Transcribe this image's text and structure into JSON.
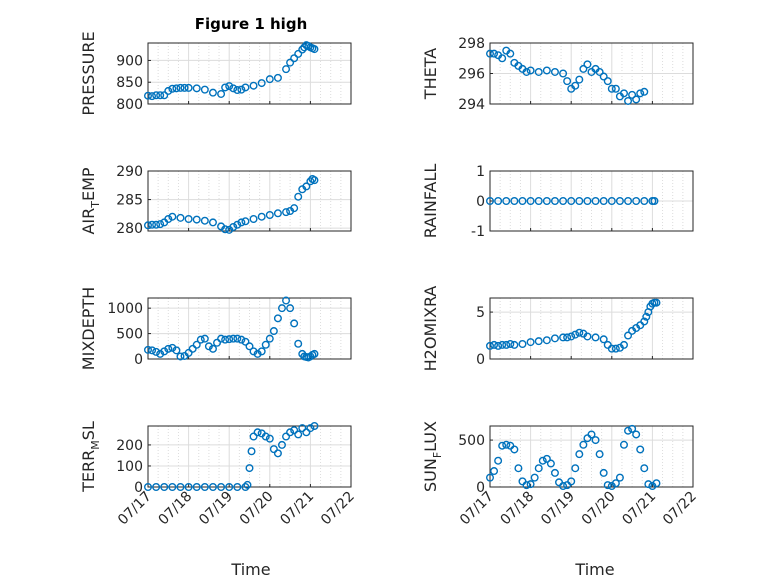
{
  "figure_title": "Figure 1 high",
  "colors": {
    "marker": "#0072BD",
    "axis": "#262626",
    "grid": "#dcdcdc"
  },
  "x_ticks": [
    "07/17",
    "07/18",
    "07/19",
    "07/20",
    "07/21",
    "07/22"
  ],
  "xlabel": "Time",
  "chart_data": [
    {
      "type": "scatter",
      "ylabel": "PRESSURE",
      "ylim": [
        800,
        940
      ],
      "yticks": [
        800,
        850,
        900
      ],
      "yticklabels": [
        "800",
        "850",
        "900"
      ],
      "grid": "major+minor",
      "x": [
        0,
        0.1,
        0.2,
        0.3,
        0.4,
        0.5,
        0.6,
        0.7,
        0.8,
        0.9,
        1,
        1.2,
        1.4,
        1.6,
        1.8,
        1.9,
        2,
        2.1,
        2.2,
        2.3,
        2.4,
        2.6,
        2.8,
        3,
        3.2,
        3.4,
        3.5,
        3.6,
        3.7,
        3.8,
        3.85,
        3.9,
        3.95,
        4,
        4.05,
        4.1
      ],
      "y": [
        819,
        818,
        820,
        820,
        820,
        830,
        835,
        836,
        837,
        837,
        837,
        836,
        833,
        826,
        823,
        838,
        841,
        836,
        832,
        833,
        838,
        842,
        848,
        857,
        860,
        880,
        895,
        905,
        915,
        925,
        930,
        935,
        933,
        930,
        928,
        926
      ]
    },
    {
      "type": "scatter",
      "ylabel": "THETA",
      "ylim": [
        294,
        298
      ],
      "yticks": [
        294,
        296,
        298
      ],
      "yticklabels": [
        "294",
        "296",
        "298"
      ],
      "grid": "major+minor",
      "x": [
        0,
        0.1,
        0.2,
        0.3,
        0.4,
        0.5,
        0.6,
        0.7,
        0.8,
        0.9,
        1,
        1.2,
        1.4,
        1.6,
        1.8,
        1.9,
        2,
        2.1,
        2.2,
        2.3,
        2.4,
        2.5,
        2.6,
        2.7,
        2.8,
        2.9,
        3,
        3.1,
        3.2,
        3.3,
        3.4,
        3.5,
        3.6,
        3.7,
        3.8
      ],
      "y": [
        297.3,
        297.3,
        297.2,
        297.0,
        297.5,
        297.3,
        296.7,
        296.5,
        296.3,
        296.1,
        296.2,
        296.1,
        296.2,
        296.1,
        296.0,
        295.5,
        295.0,
        295.2,
        295.6,
        296.3,
        296.6,
        296.1,
        296.3,
        296.1,
        295.8,
        295.5,
        295.0,
        295.0,
        294.5,
        294.7,
        294.2,
        294.6,
        294.3,
        294.7,
        294.8
      ]
    },
    {
      "type": "scatter",
      "ylabel": "AIR_TEMP",
      "ylim": [
        279.5,
        290
      ],
      "yticks": [
        280,
        285,
        290
      ],
      "yticklabels": [
        "280",
        "285",
        "290"
      ],
      "grid": "major+minor",
      "x": [
        0,
        0.1,
        0.2,
        0.3,
        0.4,
        0.5,
        0.6,
        0.8,
        1,
        1.2,
        1.4,
        1.6,
        1.8,
        1.9,
        2,
        2.1,
        2.2,
        2.3,
        2.4,
        2.6,
        2.8,
        3,
        3.2,
        3.4,
        3.5,
        3.6,
        3.7,
        3.8,
        3.9,
        4,
        4.05,
        4.1
      ],
      "y": [
        280.5,
        280.6,
        280.6,
        280.7,
        281.0,
        281.6,
        282.0,
        281.8,
        281.6,
        281.5,
        281.3,
        281.0,
        280.3,
        279.8,
        279.7,
        280.2,
        280.6,
        281.0,
        281.2,
        281.6,
        282.0,
        282.3,
        282.6,
        282.8,
        283.0,
        283.5,
        285.5,
        286.8,
        287.3,
        288.2,
        288.6,
        288.4
      ]
    },
    {
      "type": "scatter",
      "ylabel": "RAINFALL",
      "ylim": [
        -1,
        1
      ],
      "yticks": [
        -1,
        0,
        1
      ],
      "yticklabels": [
        "-1",
        "0",
        "1"
      ],
      "grid": "major+minor",
      "x": [
        0,
        0.2,
        0.4,
        0.6,
        0.8,
        1,
        1.2,
        1.4,
        1.6,
        1.8,
        2,
        2.2,
        2.4,
        2.6,
        2.8,
        3,
        3.2,
        3.4,
        3.6,
        3.8,
        4,
        4.05
      ],
      "y": [
        0,
        0,
        0,
        0,
        0,
        0,
        0,
        0,
        0,
        0,
        0,
        0,
        0,
        0,
        0,
        0,
        0,
        0,
        0,
        0,
        0,
        0
      ]
    },
    {
      "type": "scatter",
      "ylabel": "MIXDEPTH",
      "ylim": [
        0,
        1200
      ],
      "yticks": [
        0,
        500,
        1000
      ],
      "yticklabels": [
        "0",
        "500",
        "1000"
      ],
      "grid": "major+minor",
      "x": [
        0,
        0.1,
        0.2,
        0.3,
        0.4,
        0.5,
        0.6,
        0.7,
        0.8,
        0.9,
        1,
        1.1,
        1.2,
        1.3,
        1.4,
        1.5,
        1.6,
        1.7,
        1.8,
        1.9,
        2,
        2.1,
        2.2,
        2.3,
        2.4,
        2.5,
        2.6,
        2.7,
        2.8,
        2.9,
        3,
        3.1,
        3.2,
        3.3,
        3.4,
        3.5,
        3.6,
        3.7,
        3.8,
        3.85,
        3.9,
        3.95,
        4,
        4.05,
        4.1
      ],
      "y": [
        180,
        170,
        140,
        100,
        150,
        200,
        220,
        170,
        50,
        60,
        120,
        200,
        280,
        380,
        400,
        250,
        200,
        320,
        400,
        380,
        390,
        400,
        400,
        380,
        340,
        250,
        150,
        100,
        150,
        280,
        400,
        550,
        800,
        1000,
        1150,
        1000,
        700,
        300,
        100,
        50,
        40,
        30,
        50,
        80,
        100
      ]
    },
    {
      "type": "scatter",
      "ylabel": "H2OMIXRA",
      "ylim": [
        0,
        6.5
      ],
      "yticks": [
        0,
        5
      ],
      "yticklabels": [
        "0",
        "5"
      ],
      "grid": "major+minor",
      "x": [
        0,
        0.1,
        0.2,
        0.3,
        0.4,
        0.5,
        0.6,
        0.8,
        1,
        1.2,
        1.4,
        1.6,
        1.8,
        1.9,
        2,
        2.1,
        2.2,
        2.3,
        2.4,
        2.6,
        2.8,
        2.9,
        3,
        3.1,
        3.2,
        3.3,
        3.4,
        3.5,
        3.6,
        3.7,
        3.8,
        3.85,
        3.9,
        3.95,
        4,
        4.05,
        4.1
      ],
      "y": [
        1.4,
        1.5,
        1.4,
        1.5,
        1.5,
        1.6,
        1.5,
        1.6,
        1.8,
        1.9,
        2.0,
        2.2,
        2.3,
        2.3,
        2.4,
        2.6,
        2.8,
        2.7,
        2.4,
        2.3,
        2.1,
        1.5,
        1.1,
        1.1,
        1.2,
        1.5,
        2.5,
        3.0,
        3.3,
        3.6,
        4.0,
        4.5,
        5.0,
        5.6,
        5.9,
        6.0,
        6.0
      ]
    },
    {
      "type": "scatter",
      "ylabel": "TERR_MSL",
      "ylim": [
        0,
        290
      ],
      "yticks": [
        0,
        100,
        200
      ],
      "yticklabels": [
        "0",
        "100",
        "200"
      ],
      "grid": "major+minor",
      "x": [
        0,
        0.2,
        0.4,
        0.6,
        0.8,
        1,
        1.2,
        1.4,
        1.6,
        1.8,
        2,
        2.2,
        2.4,
        2.45,
        2.5,
        2.55,
        2.6,
        2.7,
        2.8,
        2.9,
        3,
        3.1,
        3.2,
        3.3,
        3.4,
        3.5,
        3.6,
        3.7,
        3.8,
        3.9,
        4,
        4.1
      ],
      "y": [
        0,
        0,
        0,
        0,
        0,
        0,
        0,
        0,
        0,
        0,
        0,
        0,
        0,
        10,
        90,
        170,
        240,
        260,
        255,
        240,
        230,
        180,
        160,
        200,
        240,
        260,
        270,
        250,
        280,
        260,
        280,
        290
      ]
    },
    {
      "type": "scatter",
      "ylabel": "SUN_FLUX",
      "ylim": [
        0,
        650
      ],
      "yticks": [
        0,
        500
      ],
      "yticklabels": [
        "0",
        "500"
      ],
      "grid": "major+minor",
      "x": [
        0,
        0.1,
        0.2,
        0.3,
        0.4,
        0.5,
        0.6,
        0.7,
        0.8,
        0.9,
        1,
        1.1,
        1.2,
        1.3,
        1.4,
        1.5,
        1.6,
        1.7,
        1.8,
        1.9,
        2,
        2.1,
        2.2,
        2.3,
        2.4,
        2.5,
        2.6,
        2.7,
        2.8,
        2.9,
        3,
        3.1,
        3.2,
        3.3,
        3.4,
        3.5,
        3.6,
        3.7,
        3.8,
        3.9,
        4,
        4.1
      ],
      "y": [
        100,
        170,
        280,
        440,
        450,
        440,
        400,
        200,
        60,
        20,
        30,
        100,
        200,
        280,
        300,
        250,
        150,
        50,
        10,
        20,
        60,
        200,
        350,
        450,
        520,
        560,
        500,
        350,
        150,
        20,
        10,
        40,
        100,
        450,
        600,
        620,
        560,
        400,
        200,
        30,
        10,
        40
      ]
    }
  ]
}
